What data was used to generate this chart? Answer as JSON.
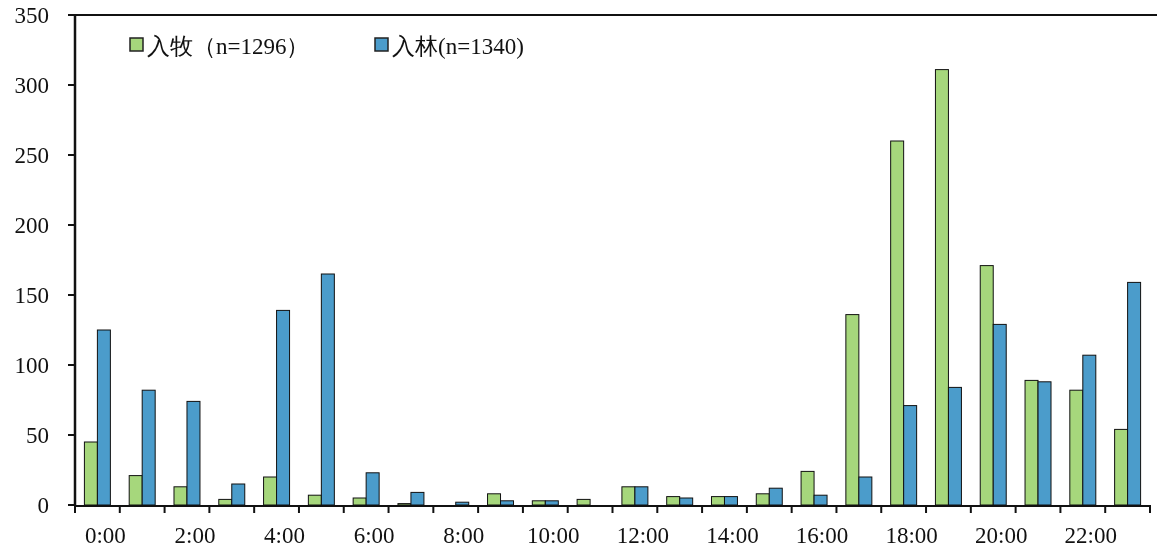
{
  "chart_data": {
    "type": "bar",
    "categories": [
      "0:00",
      null,
      "2:00",
      null,
      "4:00",
      null,
      "6:00",
      null,
      "8:00",
      null,
      "10:00",
      null,
      "12:00",
      null,
      "14:00",
      null,
      "16:00",
      null,
      "18:00",
      null,
      "20:00",
      null,
      "22:00",
      null
    ],
    "series": [
      {
        "name": "入牧（n=1296）",
        "color": "#a6d77c",
        "values": [
          45,
          21,
          13,
          4,
          20,
          7,
          5,
          1,
          0,
          8,
          3,
          4,
          13,
          6,
          6,
          8,
          24,
          136,
          260,
          311,
          171,
          89,
          82,
          54
        ]
      },
      {
        "name": "入林(n=1340)",
        "color": "#4b9ccb",
        "values": [
          125,
          82,
          74,
          15,
          139,
          165,
          23,
          9,
          2,
          3,
          3,
          0,
          13,
          5,
          6,
          12,
          7,
          20,
          71,
          84,
          129,
          88,
          107,
          159
        ]
      }
    ],
    "ylim": [
      0,
      350
    ],
    "yticks": [
      0,
      50,
      100,
      150,
      200,
      250,
      300,
      350
    ],
    "legend": "top left",
    "grid": false
  }
}
